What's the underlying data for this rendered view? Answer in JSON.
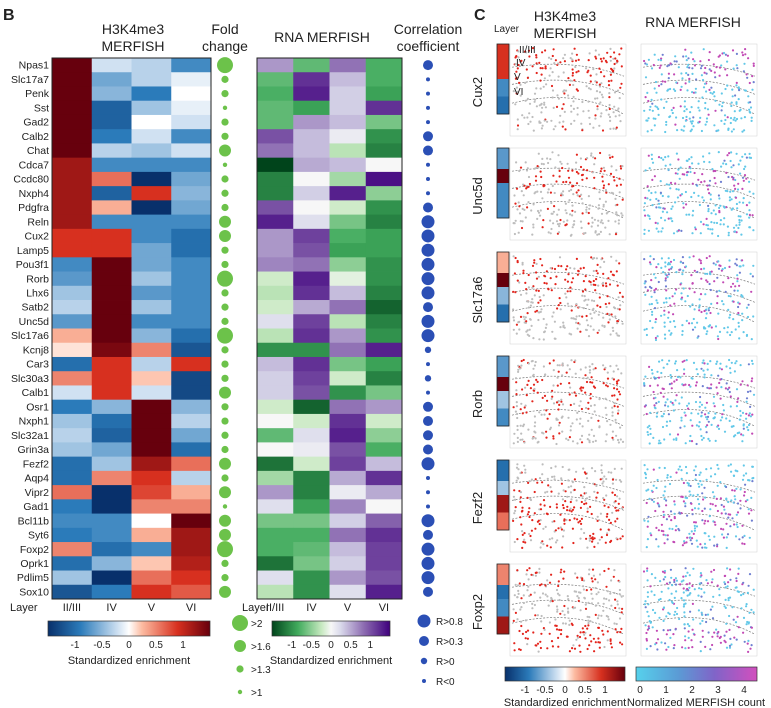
{
  "panel_b": {
    "label": "B",
    "heatmap1_title": [
      "H3K4me3",
      "MERFISH"
    ],
    "fold_title": [
      "Fold",
      "change"
    ],
    "heatmap2_title": "RNA MERFISH",
    "corr_title": [
      "Correlation",
      "coefficient"
    ],
    "layer_axis_label": "Layer",
    "layers": [
      "II/III",
      "IV",
      "V",
      "VI"
    ],
    "colorbar1": {
      "ticks": [
        "-1",
        "-0.5",
        "0",
        "0.5",
        "1"
      ],
      "label": "Standardized enrichment"
    },
    "colorbar2": {
      "ticks": [
        "-1",
        "-0.5",
        "0",
        "0.5",
        "1"
      ],
      "label": "Standardized enrichment"
    },
    "fold_legend": [
      ">2",
      ">1.6",
      ">1.3",
      ">1"
    ],
    "corr_legend": [
      "R>0.8",
      "R>0.3",
      "R>0",
      "R<0"
    ]
  },
  "panel_c": {
    "label": "C",
    "layer_header": "Layer",
    "col1_title": [
      "H3K4me3",
      "MERFISH"
    ],
    "col2_title": "RNA MERFISH",
    "layer_labels": [
      "II/III",
      "IV",
      "V",
      "VI"
    ],
    "genes": [
      "Cux2",
      "Unc5d",
      "Slc17a6",
      "Rorb",
      "Fezf2",
      "Foxp2"
    ],
    "colorbar1": {
      "ticks": [
        "-1",
        "-0.5",
        "0",
        "0.5",
        "1"
      ],
      "label": "Standardized enrichment"
    },
    "colorbar2": {
      "ticks": [
        "0",
        "1",
        "2",
        "3",
        "4"
      ],
      "label": "Normalized MERFISH count"
    }
  },
  "chart_data": [
    {
      "type": "heatmap",
      "panel": "B",
      "title": "H3K4me3 MERFISH",
      "xlabel": "Layer",
      "color_range": [
        -1.5,
        1.5
      ],
      "x": [
        "II/III",
        "IV",
        "V",
        "VI"
      ],
      "rows": [
        "Npas1",
        "Slc17a7",
        "Penk",
        "Sst",
        "Gad2",
        "Calb2",
        "Chat",
        "Cdca7",
        "Ccdc80",
        "Nxph4",
        "Pdgfra",
        "Reln",
        "Cux2",
        "Lamp5",
        "Pou3f1",
        "Rorb",
        "Lhx6",
        "Satb2",
        "Unc5d",
        "Slc17a6",
        "Kcnj8",
        "Car3",
        "Slc30a3",
        "Calb1",
        "Osr1",
        "Nxph1",
        "Slc32a1",
        "Grin3a",
        "Fezf2",
        "Aqp4",
        "Vipr2",
        "Gad1",
        "Bcl11b",
        "Syt6",
        "Foxp2",
        "Oprk1",
        "Pdlim5",
        "Sox10"
      ],
      "values": [
        [
          1.5,
          -0.2,
          -0.3,
          -0.8
        ],
        [
          1.5,
          -0.6,
          -0.3,
          -0.1
        ],
        [
          1.5,
          -0.5,
          -0.9,
          0.0
        ],
        [
          1.5,
          -1.1,
          -0.4,
          -0.1
        ],
        [
          1.5,
          -1.1,
          0.0,
          -0.2
        ],
        [
          1.5,
          -0.9,
          -0.2,
          -0.8
        ],
        [
          1.5,
          -0.3,
          -0.4,
          -0.2
        ],
        [
          1.2,
          -0.8,
          -0.8,
          -0.8
        ],
        [
          1.2,
          0.6,
          -1.5,
          -0.6
        ],
        [
          1.2,
          -1.1,
          0.9,
          -0.5
        ],
        [
          1.2,
          0.3,
          -1.5,
          -0.6
        ],
        [
          1.2,
          -0.8,
          -0.8,
          -0.8
        ],
        [
          0.9,
          0.9,
          -0.8,
          -1.0
        ],
        [
          0.9,
          0.9,
          -0.6,
          -1.0
        ],
        [
          -0.8,
          1.5,
          -0.6,
          -0.8
        ],
        [
          -0.7,
          1.5,
          -0.4,
          -0.8
        ],
        [
          -0.4,
          1.5,
          -0.7,
          -0.8
        ],
        [
          -0.3,
          1.5,
          -0.4,
          -0.8
        ],
        [
          -0.7,
          1.5,
          -0.8,
          -0.8
        ],
        [
          0.3,
          1.5,
          -0.5,
          -1.0
        ],
        [
          0.1,
          1.4,
          0.5,
          -1.2
        ],
        [
          -1.0,
          0.9,
          -0.3,
          0.9
        ],
        [
          0.5,
          0.9,
          0.2,
          -1.3
        ],
        [
          -0.2,
          0.9,
          -0.2,
          -1.3
        ],
        [
          -0.9,
          -0.5,
          1.5,
          -0.5
        ],
        [
          -0.4,
          -1.0,
          1.5,
          -0.3
        ],
        [
          -0.3,
          -1.1,
          1.5,
          -0.6
        ],
        [
          -0.4,
          -0.6,
          1.5,
          -1.0
        ],
        [
          -1.0,
          -0.4,
          1.2,
          0.6
        ],
        [
          -1.0,
          0.5,
          0.9,
          -0.3
        ],
        [
          0.6,
          -1.5,
          0.8,
          0.3
        ],
        [
          -0.9,
          -1.5,
          0.5,
          0.5
        ],
        [
          -0.8,
          -0.8,
          0.0,
          1.5
        ],
        [
          -0.9,
          -0.8,
          0.3,
          1.2
        ],
        [
          0.5,
          -1.0,
          -0.8,
          1.2
        ],
        [
          -1.0,
          -0.5,
          0.2,
          1.1
        ],
        [
          -0.4,
          -1.5,
          0.6,
          0.9
        ],
        [
          -1.2,
          -0.9,
          0.9,
          0.7
        ]
      ]
    },
    {
      "type": "scatter",
      "panel": "B",
      "title": "Fold change",
      "levels": [
        ">2",
        ">1.6",
        ">1.3",
        ">1"
      ],
      "rows": [
        "Npas1",
        "Slc17a7",
        "Penk",
        "Sst",
        "Gad2",
        "Calb2",
        "Chat",
        "Cdca7",
        "Ccdc80",
        "Nxph4",
        "Pdgfra",
        "Reln",
        "Cux2",
        "Lamp5",
        "Pou3f1",
        "Rorb",
        "Lhx6",
        "Satb2",
        "Unc5d",
        "Slc17a6",
        "Kcnj8",
        "Car3",
        "Slc30a3",
        "Calb1",
        "Osr1",
        "Nxph1",
        "Slc32a1",
        "Grin3a",
        "Fezf2",
        "Aqp4",
        "Vipr2",
        "Gad1",
        "Bcl11b",
        "Syt6",
        "Foxp2",
        "Oprk1",
        "Pdlim5",
        "Sox10"
      ],
      "values": [
        ">2",
        ">1.3",
        ">1.3",
        ">1",
        ">1.3",
        ">1.3",
        ">1.6",
        ">1",
        ">1.3",
        ">1.3",
        ">1.3",
        ">1.6",
        ">1.6",
        ">1.3",
        ">1.3",
        ">2",
        ">1.3",
        ">1.3",
        ">1.3",
        ">2",
        ">1.3",
        ">1.3",
        ">1.3",
        ">1.6",
        ">1.3",
        ">1.3",
        ">1.3",
        ">1.3",
        ">1.6",
        ">1.3",
        ">1.6",
        ">1",
        ">1.6",
        ">1.6",
        ">2",
        ">1.3",
        ">1.3",
        ">1.6"
      ]
    },
    {
      "type": "heatmap",
      "panel": "B",
      "title": "RNA MERFISH",
      "xlabel": "Layer",
      "color_range": [
        -1.5,
        1.5
      ],
      "x": [
        "II/III",
        "IV",
        "V",
        "VI"
      ],
      "rows": [
        "Npas1",
        "Slc17a7",
        "Penk",
        "Sst",
        "Gad2",
        "Calb2",
        "Chat",
        "Cdca7",
        "Ccdc80",
        "Nxph4",
        "Pdgfra",
        "Reln",
        "Cux2",
        "Lamp5",
        "Pou3f1",
        "Rorb",
        "Lhx6",
        "Satb2",
        "Unc5d",
        "Slc17a6",
        "Kcnj8",
        "Car3",
        "Slc30a3",
        "Calb1",
        "Osr1",
        "Nxph1",
        "Slc32a1",
        "Grin3a",
        "Fezf2",
        "Aqp4",
        "Vipr2",
        "Gad1",
        "Bcl11b",
        "Syt6",
        "Foxp2",
        "Oprk1",
        "Pdlim5",
        "Sox10"
      ],
      "values": [
        [
          0.6,
          -0.7,
          0.8,
          -0.8
        ],
        [
          -0.7,
          1.2,
          0.4,
          -0.8
        ],
        [
          -0.8,
          1.3,
          0.3,
          -0.9
        ],
        [
          -0.7,
          -0.9,
          0.3,
          1.2
        ],
        [
          -0.7,
          0.6,
          0.4,
          -0.6
        ],
        [
          1.0,
          0.4,
          0.1,
          -1.0
        ],
        [
          0.8,
          0.4,
          -0.3,
          -1.1
        ],
        [
          -1.5,
          0.5,
          0.4,
          0.0
        ],
        [
          -1.1,
          0.0,
          -0.4,
          1.4
        ],
        [
          -1.1,
          0.3,
          1.3,
          -0.5
        ],
        [
          1.0,
          0.0,
          -0.2,
          -1.0
        ],
        [
          1.3,
          0.2,
          -0.6,
          -1.1
        ],
        [
          0.6,
          1.1,
          -0.8,
          -0.9
        ],
        [
          0.6,
          1.0,
          -0.9,
          -0.9
        ],
        [
          0.7,
          0.8,
          -0.5,
          -1.0
        ],
        [
          -0.2,
          1.3,
          -0.1,
          -1.0
        ],
        [
          -0.3,
          1.2,
          0.4,
          -1.1
        ],
        [
          -0.2,
          0.5,
          0.8,
          -1.3
        ],
        [
          0.2,
          1.1,
          -0.3,
          -1.1
        ],
        [
          -0.3,
          1.2,
          0.6,
          -1.0
        ],
        [
          -1.0,
          -1.0,
          0.8,
          1.3
        ],
        [
          0.4,
          1.2,
          -0.6,
          -0.9
        ],
        [
          0.3,
          1.1,
          -0.2,
          -1.1
        ],
        [
          0.3,
          1.0,
          -1.0,
          -0.6
        ],
        [
          -0.2,
          -1.3,
          0.8,
          0.6
        ],
        [
          0.0,
          -0.2,
          1.2,
          -0.2
        ],
        [
          -0.7,
          0.2,
          1.3,
          -0.5
        ],
        [
          0.0,
          0.1,
          1.0,
          -0.8
        ],
        [
          -1.2,
          -0.2,
          1.1,
          0.4
        ],
        [
          -0.4,
          -1.1,
          0.5,
          1.2
        ],
        [
          0.6,
          -1.1,
          0.1,
          0.5
        ],
        [
          0.2,
          -0.9,
          0.7,
          0.0
        ],
        [
          -0.6,
          -0.6,
          0.3,
          0.9
        ],
        [
          -0.8,
          -0.8,
          0.8,
          1.2
        ],
        [
          -0.8,
          -0.7,
          0.4,
          1.1
        ],
        [
          -1.2,
          -0.6,
          0.3,
          1.1
        ],
        [
          0.2,
          -1.0,
          0.6,
          1.0
        ],
        [
          -0.3,
          -1.0,
          0.2,
          1.3
        ]
      ]
    },
    {
      "type": "scatter",
      "panel": "B",
      "title": "Correlation coefficient",
      "levels": [
        "R>0.8",
        "R>0.3",
        "R>0",
        "R<0"
      ],
      "rows": [
        "Npas1",
        "Slc17a7",
        "Penk",
        "Sst",
        "Gad2",
        "Calb2",
        "Chat",
        "Cdca7",
        "Ccdc80",
        "Nxph4",
        "Pdgfra",
        "Reln",
        "Cux2",
        "Lamp5",
        "Pou3f1",
        "Rorb",
        "Lhx6",
        "Satb2",
        "Unc5d",
        "Slc17a6",
        "Kcnj8",
        "Car3",
        "Slc30a3",
        "Calb1",
        "Osr1",
        "Nxph1",
        "Slc32a1",
        "Grin3a",
        "Fezf2",
        "Aqp4",
        "Vipr2",
        "Gad1",
        "Bcl11b",
        "Syt6",
        "Foxp2",
        "Oprk1",
        "Pdlim5",
        "Sox10"
      ],
      "values": [
        "R>0.3",
        "R<0",
        "R<0",
        "R<0",
        "R<0",
        "R>0.3",
        "R>0.3",
        "R<0",
        "R<0",
        "R<0",
        "R>0.3",
        "R>0.8",
        "R>0.8",
        "R>0.8",
        "R>0.8",
        "R>0.8",
        "R>0.8",
        "R>0.3",
        "R>0.8",
        "R>0.8",
        "R>0",
        "R<0",
        "R>0",
        "R<0",
        "R>0.3",
        "R>0.3",
        "R>0.3",
        "R>0.3",
        "R>0.8",
        "R<0",
        "R<0",
        "R<0",
        "R>0.8",
        "R>0.3",
        "R>0.8",
        "R>0.8",
        "R>0.8",
        "R>0.3"
      ]
    },
    {
      "type": "heatmap",
      "panel": "C",
      "title": "Layer",
      "color_range": [
        -1.5,
        1.5
      ],
      "rows": [
        "Cux2",
        "Unc5d",
        "Slc17a6",
        "Rorb",
        "Fezf2",
        "Foxp2"
      ],
      "x": [
        "II/III",
        "IV",
        "V",
        "VI"
      ],
      "values": [
        [
          0.9,
          0.9,
          -0.8,
          -1.0
        ],
        [
          -0.7,
          1.5,
          -0.8,
          -0.8
        ],
        [
          0.3,
          1.5,
          -0.5,
          -1.0
        ],
        [
          -0.7,
          1.5,
          -0.4,
          -0.8
        ],
        [
          -1.0,
          -0.4,
          1.2,
          0.6
        ],
        [
          0.5,
          -1.0,
          -0.8,
          1.2
        ]
      ]
    }
  ]
}
